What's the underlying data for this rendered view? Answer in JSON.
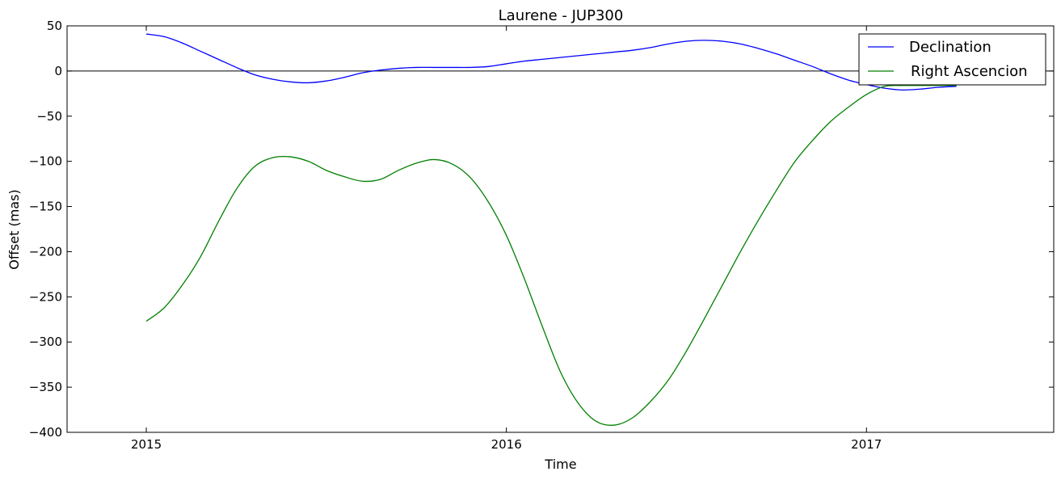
{
  "chart_data": {
    "type": "line",
    "title": "Laurene - JUP300",
    "xlabel": "Time",
    "ylabel": "Offset (mas)",
    "xlim": [
      2014.78,
      2017.52
    ],
    "ylim": [
      -400,
      50
    ],
    "xticks": [
      2015,
      2016,
      2017
    ],
    "xtick_labels": [
      "2015",
      "2016",
      "2017"
    ],
    "yticks": [
      50,
      0,
      -50,
      -100,
      -150,
      -200,
      -250,
      -300,
      -350,
      -400
    ],
    "ytick_labels": [
      "50",
      "0",
      "−50",
      "−100",
      "−150",
      "−200",
      "−250",
      "−300",
      "−350",
      "−400"
    ],
    "grid": false,
    "reference_line_y": 0,
    "legend": {
      "position": "top-right"
    },
    "series": [
      {
        "name": "Declination",
        "color": "#0000ff",
        "x": [
          2015.0,
          2015.05,
          2015.1,
          2015.15,
          2015.2,
          2015.25,
          2015.3,
          2015.35,
          2015.4,
          2015.45,
          2015.5,
          2015.55,
          2015.6,
          2015.65,
          2015.7,
          2015.75,
          2015.8,
          2015.85,
          2015.9,
          2015.95,
          2016.0,
          2016.05,
          2016.1,
          2016.15,
          2016.2,
          2016.25,
          2016.3,
          2016.35,
          2016.4,
          2016.45,
          2016.5,
          2016.55,
          2016.6,
          2016.65,
          2016.7,
          2016.75,
          2016.8,
          2016.85,
          2016.9,
          2016.95,
          2017.0,
          2017.05,
          2017.1,
          2017.15,
          2017.2,
          2017.25
        ],
        "y": [
          41,
          38,
          31,
          22,
          13,
          4,
          -4,
          -9,
          -12,
          -13,
          -11,
          -7,
          -2,
          1,
          3,
          4,
          4,
          4,
          4,
          5,
          8,
          11,
          13,
          15,
          17,
          19,
          21,
          23,
          26,
          30,
          33,
          34,
          33,
          30,
          25,
          19,
          12,
          5,
          -3,
          -10,
          -15,
          -19,
          -21,
          -20,
          -18,
          -17
        ]
      },
      {
        "name": "Right Ascencion",
        "color": "#008000",
        "x": [
          2015.0,
          2015.05,
          2015.1,
          2015.15,
          2015.2,
          2015.25,
          2015.3,
          2015.35,
          2015.4,
          2015.45,
          2015.5,
          2015.55,
          2015.6,
          2015.65,
          2015.7,
          2015.75,
          2015.8,
          2015.85,
          2015.9,
          2015.95,
          2016.0,
          2016.05,
          2016.1,
          2016.15,
          2016.2,
          2016.25,
          2016.3,
          2016.35,
          2016.4,
          2016.45,
          2016.5,
          2016.55,
          2016.6,
          2016.65,
          2016.7,
          2016.75,
          2016.8,
          2016.85,
          2016.9,
          2016.95,
          2017.0,
          2017.05,
          2017.1,
          2017.15,
          2017.2,
          2017.25
        ],
        "y": [
          -277,
          -262,
          -237,
          -206,
          -167,
          -131,
          -106,
          -96,
          -95,
          -100,
          -110,
          -117,
          -122,
          -120,
          -110,
          -102,
          -98,
          -103,
          -118,
          -145,
          -182,
          -230,
          -283,
          -333,
          -368,
          -388,
          -392,
          -384,
          -366,
          -342,
          -310,
          -274,
          -237,
          -200,
          -165,
          -132,
          -101,
          -77,
          -56,
          -40,
          -26,
          -17,
          -16,
          -16,
          -16,
          -16
        ]
      }
    ]
  }
}
